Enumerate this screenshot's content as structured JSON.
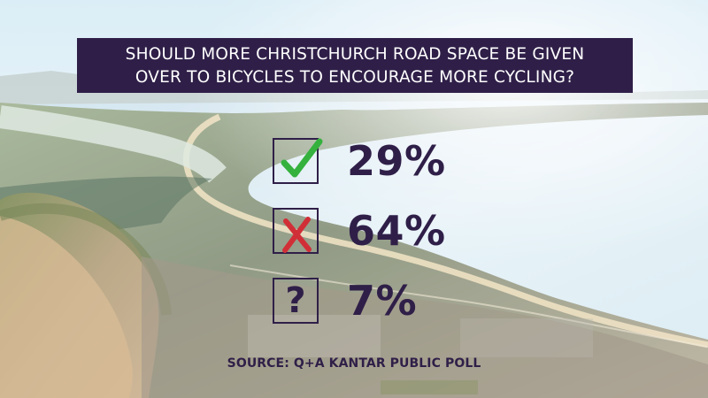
{
  "question": {
    "line1": "SHOULD MORE CHRISTCHURCH ROAD SPACE BE GIVEN",
    "line2": "OVER TO BICYCLES TO ENCOURAGE MORE CYCLING?"
  },
  "results": [
    {
      "icon": "check-icon",
      "value": "29%",
      "color": "#35b13e"
    },
    {
      "icon": "cross-icon",
      "value": "64%",
      "color": "#d12f38"
    },
    {
      "icon": "question-mark-icon",
      "value": "7%",
      "symbol": "?",
      "color": "#2f1f48"
    }
  ],
  "source": "SOURCE: Q+A KANTAR PUBLIC POLL",
  "colors": {
    "banner": "#2f1f48",
    "text": "#2f1f48",
    "yes": "#35b13e",
    "no": "#d12f38"
  }
}
